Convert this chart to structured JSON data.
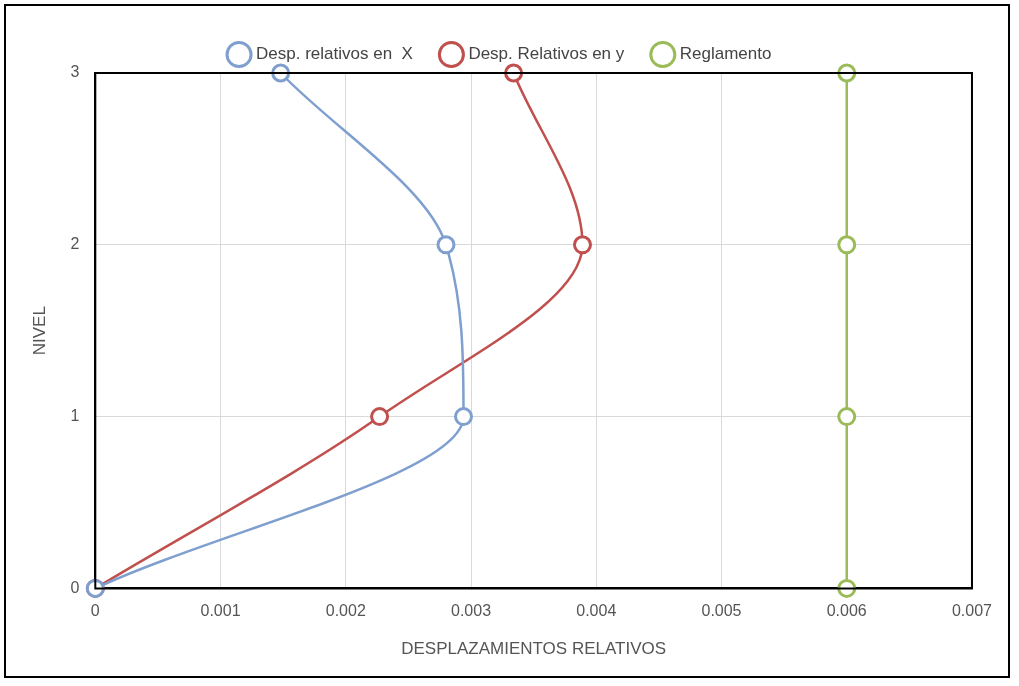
{
  "chart_data": {
    "type": "line",
    "xlabel": "DESPLAZAMIENTOS RELATIVOS",
    "ylabel": "NIVEL",
    "series": [
      {
        "name": "Desp. relativos en  X",
        "color": "#7f9fcf",
        "x": [
          0,
          0.00294,
          0.0028,
          0.00148
        ],
        "values": [
          0,
          1,
          2,
          3
        ]
      },
      {
        "name": "Desp. Relativos en y",
        "color": "#c0504d",
        "x": [
          0,
          0.00227,
          0.00389,
          0.00334
        ],
        "values": [
          0,
          1,
          2,
          3
        ]
      },
      {
        "name": "Reglamento",
        "color": "#9bbb59",
        "x": [
          0.006,
          0.006,
          0.006,
          0.006
        ],
        "values": [
          0,
          1,
          2,
          3
        ]
      }
    ],
    "xlim": [
      0,
      0.007
    ],
    "xticks": [
      0,
      0.001,
      0.002,
      0.003,
      0.004,
      0.005,
      0.006,
      0.007
    ],
    "ylim": [
      0,
      3
    ],
    "yticks": [
      0,
      1,
      2,
      3
    ],
    "grid": true,
    "legend": "top",
    "marker": "circle",
    "line_style": "solid"
  }
}
